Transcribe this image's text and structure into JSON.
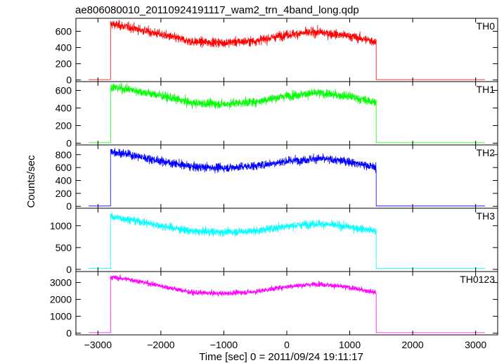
{
  "chart_data": {
    "type": "line",
    "title": "ae806080010_20110924191117_wam2_trn_4band_long.qdp",
    "xlabel": "Time [sec] 0 = 2011/09/24 19:11:17",
    "ylabel": "Counts/sec",
    "xlim": [
      -3350,
      3350
    ],
    "x_ticks": [
      -3000,
      -2000,
      -1000,
      0,
      1000,
      2000,
      3000
    ],
    "x_tick_labels": [
      "−3000",
      "−2000",
      "−1000",
      "0",
      "1000",
      "2000",
      "3000"
    ],
    "grid": false,
    "x_off_before": [
      -3150,
      -2800
    ],
    "x_on": [
      -2800,
      1420
    ],
    "x_off_after": [
      1420,
      3150
    ],
    "panels": [
      {
        "name": "TH0",
        "color": "#ff0000",
        "ylim": [
          -20,
          760
        ],
        "y_ticks": [
          0,
          200,
          400,
          600
        ],
        "y_tick_labels": [
          "0",
          "200",
          "400",
          "600"
        ],
        "noise": 28,
        "off_level": 5,
        "x": [
          -2800,
          -2500,
          -2000,
          -1500,
          -1000,
          -500,
          0,
          500,
          1000,
          1420
        ],
        "y": [
          690,
          650,
          560,
          470,
          460,
          480,
          560,
          590,
          540,
          470
        ]
      },
      {
        "name": "TH1",
        "color": "#00ff00",
        "ylim": [
          -20,
          700
        ],
        "y_ticks": [
          0,
          200,
          400,
          600
        ],
        "y_tick_labels": [
          "0",
          "200",
          "400",
          "600"
        ],
        "noise": 25,
        "off_level": 5,
        "x": [
          -2800,
          -2500,
          -2000,
          -1500,
          -1000,
          -500,
          0,
          500,
          1000,
          1420
        ],
        "y": [
          640,
          610,
          540,
          455,
          445,
          470,
          540,
          570,
          530,
          460
        ]
      },
      {
        "name": "TH2",
        "color": "#0000ff",
        "ylim": [
          -30,
          950
        ],
        "y_ticks": [
          0,
          200,
          400,
          600,
          800
        ],
        "y_tick_labels": [
          "0",
          "200",
          "400",
          "600",
          "800"
        ],
        "noise": 33,
        "off_level": 5,
        "x": [
          -2800,
          -2500,
          -2000,
          -1500,
          -1000,
          -500,
          0,
          500,
          1000,
          1420
        ],
        "y": [
          850,
          800,
          700,
          610,
          595,
          625,
          700,
          740,
          690,
          600
        ]
      },
      {
        "name": "TH3",
        "color": "#00ffff",
        "ylim": [
          -50,
          1400
        ],
        "y_ticks": [
          0,
          500,
          1000
        ],
        "y_tick_labels": [
          "0",
          "500",
          "1000"
        ],
        "noise": 45,
        "off_level": 20,
        "x": [
          -2800,
          -2500,
          -2000,
          -1500,
          -1000,
          -500,
          0,
          500,
          1000,
          1420
        ],
        "y": [
          1210,
          1140,
          1000,
          870,
          855,
          880,
          990,
          1050,
          970,
          870
        ]
      },
      {
        "name": "TH0123",
        "color": "#ff00ff",
        "ylim": [
          -100,
          3650
        ],
        "y_ticks": [
          0,
          1000,
          2000,
          3000
        ],
        "y_tick_labels": [
          "0",
          "1000",
          "2000",
          "3000"
        ],
        "noise": 75,
        "off_level": 30,
        "x": [
          -2800,
          -2500,
          -2000,
          -1500,
          -1000,
          -500,
          0,
          500,
          1000,
          1420
        ],
        "y": [
          3320,
          3180,
          2800,
          2400,
          2350,
          2460,
          2760,
          2920,
          2700,
          2400
        ]
      }
    ]
  }
}
